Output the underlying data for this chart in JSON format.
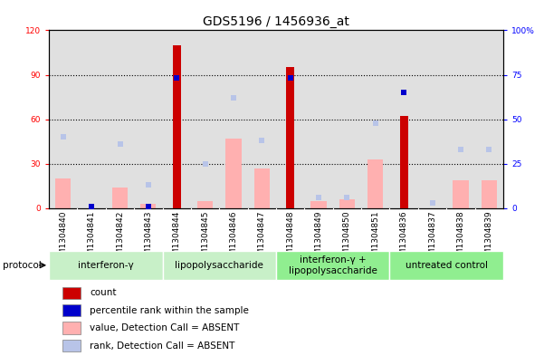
{
  "title": "GDS5196 / 1456936_at",
  "samples": [
    "GSM1304840",
    "GSM1304841",
    "GSM1304842",
    "GSM1304843",
    "GSM1304844",
    "GSM1304845",
    "GSM1304846",
    "GSM1304847",
    "GSM1304848",
    "GSM1304849",
    "GSM1304850",
    "GSM1304851",
    "GSM1304836",
    "GSM1304837",
    "GSM1304838",
    "GSM1304839"
  ],
  "count_values": [
    0,
    1,
    0,
    1,
    110,
    0,
    0,
    0,
    95,
    0,
    0,
    0,
    62,
    0,
    0,
    0
  ],
  "rank_values_present": [
    null,
    1,
    null,
    1,
    73,
    null,
    null,
    null,
    73,
    null,
    null,
    null,
    65,
    null,
    null,
    null
  ],
  "value_absent": [
    20,
    0,
    14,
    3,
    0,
    5,
    47,
    27,
    0,
    5,
    6,
    33,
    0,
    0,
    19,
    19
  ],
  "rank_absent": [
    40,
    0,
    36,
    13,
    0,
    25,
    62,
    38,
    0,
    6,
    6,
    48,
    0,
    3,
    33,
    33
  ],
  "groups": [
    {
      "label": "interferon-γ",
      "start": 0,
      "end": 4,
      "color": "#c8f0c8"
    },
    {
      "label": "lipopolysaccharide",
      "start": 4,
      "end": 8,
      "color": "#c8f0c8"
    },
    {
      "label": "interferon-γ +\nlipopolysaccharide",
      "start": 8,
      "end": 12,
      "color": "#90ee90"
    },
    {
      "label": "untreated control",
      "start": 12,
      "end": 16,
      "color": "#90ee90"
    }
  ],
  "ylim_left": [
    0,
    120
  ],
  "ylim_right": [
    0,
    100
  ],
  "yticks_left": [
    0,
    30,
    60,
    90,
    120
  ],
  "yticks_right": [
    0,
    25,
    50,
    75,
    100
  ],
  "left_tick_labels": [
    "0",
    "30",
    "60",
    "90",
    "120"
  ],
  "right_tick_labels": [
    "0",
    "25",
    "50",
    "75",
    "100%"
  ],
  "count_color": "#cc0000",
  "rank_color": "#0000cc",
  "absent_value_color": "#ffb0b0",
  "absent_rank_color": "#b8c4e8",
  "legend_items": [
    {
      "label": "count",
      "color": "#cc0000"
    },
    {
      "label": "percentile rank within the sample",
      "color": "#0000cc"
    },
    {
      "label": "value, Detection Call = ABSENT",
      "color": "#ffb0b0"
    },
    {
      "label": "rank, Detection Call = ABSENT",
      "color": "#b8c4e8"
    }
  ],
  "background_color": "#ffffff",
  "plot_bg_color": "#e0e0e0",
  "xtick_bg_color": "#c8c8c8",
  "title_fontsize": 10,
  "tick_fontsize": 6.5,
  "label_fontsize": 8
}
